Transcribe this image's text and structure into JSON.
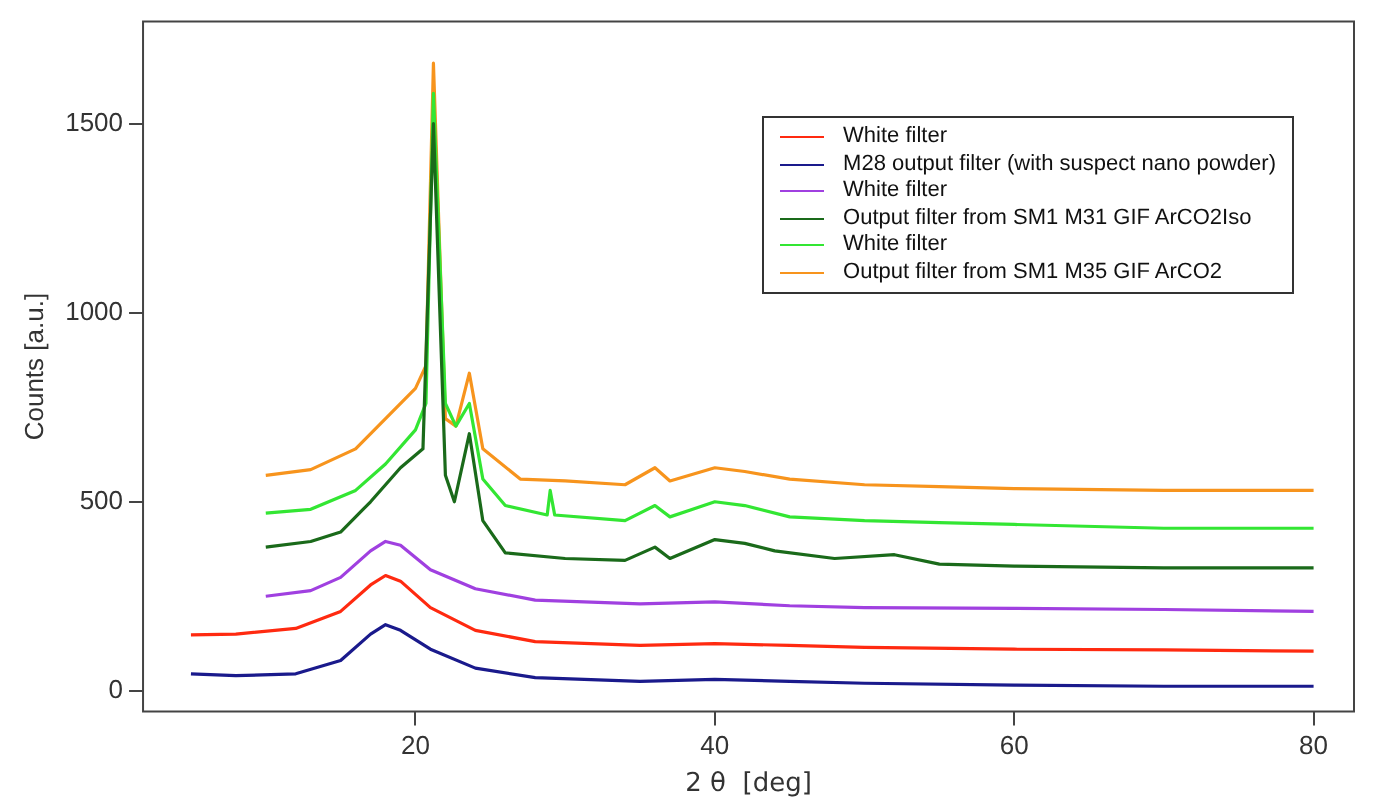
{
  "chart_data": {
    "type": "line",
    "xlabel": "2 θ  [deg]",
    "ylabel": "Counts [a.u.]",
    "xlim": [
      1.8,
      82.7
    ],
    "ylim": [
      -55,
      1770
    ],
    "xticks": [
      20,
      40,
      60,
      80
    ],
    "yticks": [
      0,
      500,
      1000,
      1500
    ],
    "grid": false,
    "legend": "top right",
    "marker": "none",
    "line_style": "solid",
    "series": [
      {
        "name": "White filter",
        "color": "#ff2a10",
        "x": [
          5,
          8,
          12,
          15,
          17,
          18,
          19,
          21,
          24,
          28,
          35,
          40,
          45,
          50,
          60,
          70,
          80
        ],
        "values": [
          148,
          150,
          165,
          210,
          280,
          305,
          290,
          220,
          160,
          130,
          120,
          125,
          120,
          115,
          110,
          108,
          105
        ]
      },
      {
        "name": "M28 output filter (with suspect nano powder)",
        "color": "#1a1a8c",
        "x": [
          5,
          8,
          12,
          15,
          17,
          18,
          19,
          21,
          24,
          28,
          35,
          40,
          45,
          50,
          60,
          70,
          80
        ],
        "values": [
          45,
          40,
          45,
          80,
          150,
          175,
          160,
          110,
          60,
          35,
          25,
          30,
          25,
          20,
          15,
          12,
          12
        ]
      },
      {
        "name": "White filter",
        "color": "#a040e0",
        "x": [
          10,
          13,
          15,
          17,
          18,
          19,
          21,
          24,
          28,
          35,
          40,
          45,
          50,
          60,
          70,
          80
        ],
        "values": [
          250,
          265,
          300,
          370,
          395,
          385,
          320,
          270,
          240,
          230,
          235,
          225,
          220,
          218,
          215,
          210
        ]
      },
      {
        "name": "Output filter from SM1 M31 GIF ArCO2Iso",
        "color": "#1a6a1a",
        "x": [
          10,
          13,
          15,
          17,
          19,
          20.5,
          21.2,
          22,
          22.6,
          23.6,
          24.5,
          26,
          30,
          34,
          36,
          37,
          40,
          42,
          44,
          48,
          52,
          55,
          60,
          70,
          80
        ],
        "values": [
          380,
          395,
          420,
          500,
          590,
          640,
          1500,
          570,
          500,
          680,
          450,
          365,
          350,
          345,
          380,
          350,
          400,
          390,
          370,
          350,
          360,
          335,
          330,
          325,
          325
        ]
      },
      {
        "name": "White filter",
        "color": "#33e633",
        "x": [
          10,
          13,
          16,
          18,
          20,
          20.7,
          21.2,
          22,
          22.7,
          23.6,
          24.5,
          26,
          28.8,
          29,
          29.3,
          34,
          36,
          37,
          40,
          42,
          45,
          50,
          55,
          60,
          70,
          80
        ],
        "values": [
          470,
          480,
          530,
          600,
          690,
          760,
          1580,
          760,
          700,
          760,
          560,
          490,
          465,
          530,
          465,
          450,
          490,
          460,
          500,
          490,
          460,
          450,
          445,
          440,
          430,
          430
        ]
      },
      {
        "name": "Output filter from SM1 M35 GIF ArCO2",
        "color": "#f7941d",
        "x": [
          10,
          13,
          16,
          18,
          20,
          20.7,
          21.2,
          22,
          22.7,
          23.6,
          24.5,
          27,
          30,
          34,
          36,
          37,
          40,
          42,
          45,
          50,
          55,
          60,
          70,
          80
        ],
        "values": [
          570,
          585,
          640,
          720,
          800,
          860,
          1660,
          720,
          700,
          840,
          640,
          560,
          555,
          545,
          590,
          555,
          590,
          580,
          560,
          545,
          540,
          535,
          530,
          530
        ]
      }
    ]
  }
}
